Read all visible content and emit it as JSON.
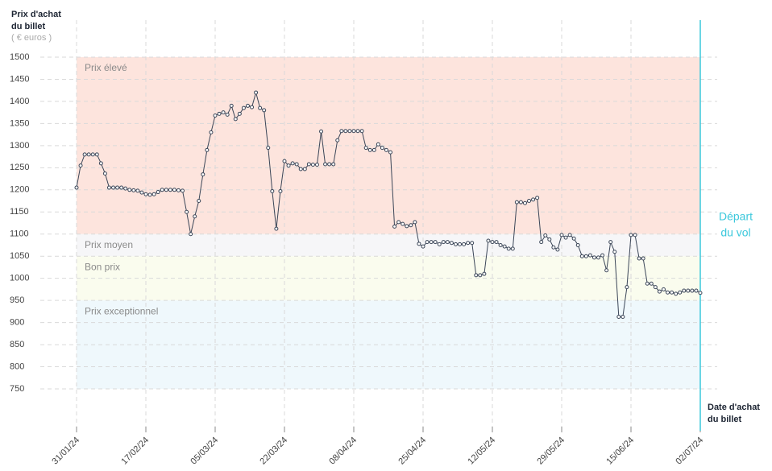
{
  "chart_data": {
    "type": "line",
    "y_label": [
      "Prix d'achat",
      "du billet"
    ],
    "y_unit": "( € euros )",
    "x_label": [
      "Date d'achat",
      "du billet"
    ],
    "annotation": [
      "Départ",
      "du vol"
    ],
    "ylim": [
      750,
      1500
    ],
    "yticks": [
      750,
      800,
      850,
      900,
      950,
      1000,
      1050,
      1100,
      1150,
      1200,
      1250,
      1300,
      1350,
      1400,
      1450,
      1500
    ],
    "grid": true,
    "bands": [
      {
        "label": "Prix élevé",
        "from": 1100,
        "to": 1500,
        "color": "#fde4dd"
      },
      {
        "label": "Prix moyen",
        "from": 1050,
        "to": 1100,
        "color": "#f6f6f8"
      },
      {
        "label": "Bon prix",
        "from": 950,
        "to": 1050,
        "color": "#fafcee"
      },
      {
        "label": "Prix exceptionnel",
        "from": 750,
        "to": 950,
        "color": "#eff8fc"
      }
    ],
    "color": "#3b4658",
    "annotation_color": "#3cc8dc",
    "categories": [
      "31/01/24",
      null,
      null,
      null,
      null,
      null,
      null,
      null,
      null,
      null,
      null,
      null,
      null,
      null,
      null,
      null,
      null,
      "17/02/24",
      null,
      null,
      null,
      null,
      null,
      null,
      null,
      null,
      null,
      null,
      null,
      null,
      null,
      null,
      null,
      null,
      "05/03/24",
      null,
      null,
      null,
      null,
      null,
      null,
      null,
      null,
      null,
      null,
      null,
      null,
      null,
      null,
      null,
      null,
      "22/03/24",
      null,
      null,
      null,
      null,
      null,
      null,
      null,
      null,
      null,
      null,
      null,
      null,
      null,
      null,
      null,
      null,
      "08/04/24",
      null,
      null,
      null,
      null,
      null,
      null,
      null,
      null,
      null,
      null,
      null,
      null,
      null,
      null,
      null,
      null,
      "25/04/24",
      null,
      null,
      null,
      null,
      null,
      null,
      null,
      null,
      null,
      null,
      null,
      null,
      null,
      null,
      null,
      null,
      "12/05/24",
      null,
      null,
      null,
      null,
      null,
      null,
      null,
      null,
      null,
      null,
      null,
      null,
      null,
      null,
      null,
      null,
      "29/05/24",
      null,
      null,
      null,
      null,
      null,
      null,
      null,
      null,
      null,
      null,
      null,
      null,
      null,
      null,
      null,
      null,
      "15/06/24",
      null,
      null,
      null,
      null,
      null,
      null,
      null,
      null,
      null,
      null,
      null,
      null,
      null,
      null,
      null,
      null,
      "02/07/24"
    ],
    "values": [
      1205,
      1255,
      1280,
      1280,
      1280,
      1280,
      1260,
      1237,
      1205,
      1205,
      1205,
      1205,
      1203,
      1200,
      1199,
      1198,
      1194,
      1190,
      1189,
      1190,
      1195,
      1200,
      1200,
      1200,
      1200,
      1199,
      1198,
      1150,
      1100,
      1140,
      1175,
      1235,
      1290,
      1330,
      1368,
      1372,
      1375,
      1370,
      1390,
      1360,
      1372,
      1385,
      1390,
      1387,
      1420,
      1385,
      1380,
      1295,
      1197,
      1112,
      1197,
      1265,
      1255,
      1260,
      1258,
      1247,
      1247,
      1258,
      1257,
      1257,
      1332,
      1258,
      1258,
      1258,
      1312,
      1333,
      1333,
      1333,
      1333,
      1333,
      1333,
      1295,
      1290,
      1290,
      1303,
      1295,
      1290,
      1285,
      1117,
      1127,
      1123,
      1118,
      1120,
      1127,
      1078,
      1072,
      1082,
      1082,
      1082,
      1077,
      1082,
      1082,
      1080,
      1077,
      1077,
      1077,
      1080,
      1080,
      1007,
      1007,
      1010,
      1085,
      1082,
      1082,
      1075,
      1072,
      1067,
      1067,
      1172,
      1172,
      1170,
      1175,
      1178,
      1182,
      1082,
      1097,
      1088,
      1070,
      1065,
      1098,
      1092,
      1098,
      1090,
      1075,
      1050,
      1050,
      1052,
      1047,
      1047,
      1052,
      1018,
      1082,
      1060,
      913,
      913,
      980,
      1098,
      1098,
      1045,
      1045,
      988,
      988,
      980,
      970,
      975,
      968,
      968,
      965,
      968,
      972,
      972,
      972,
      972,
      967
    ]
  }
}
